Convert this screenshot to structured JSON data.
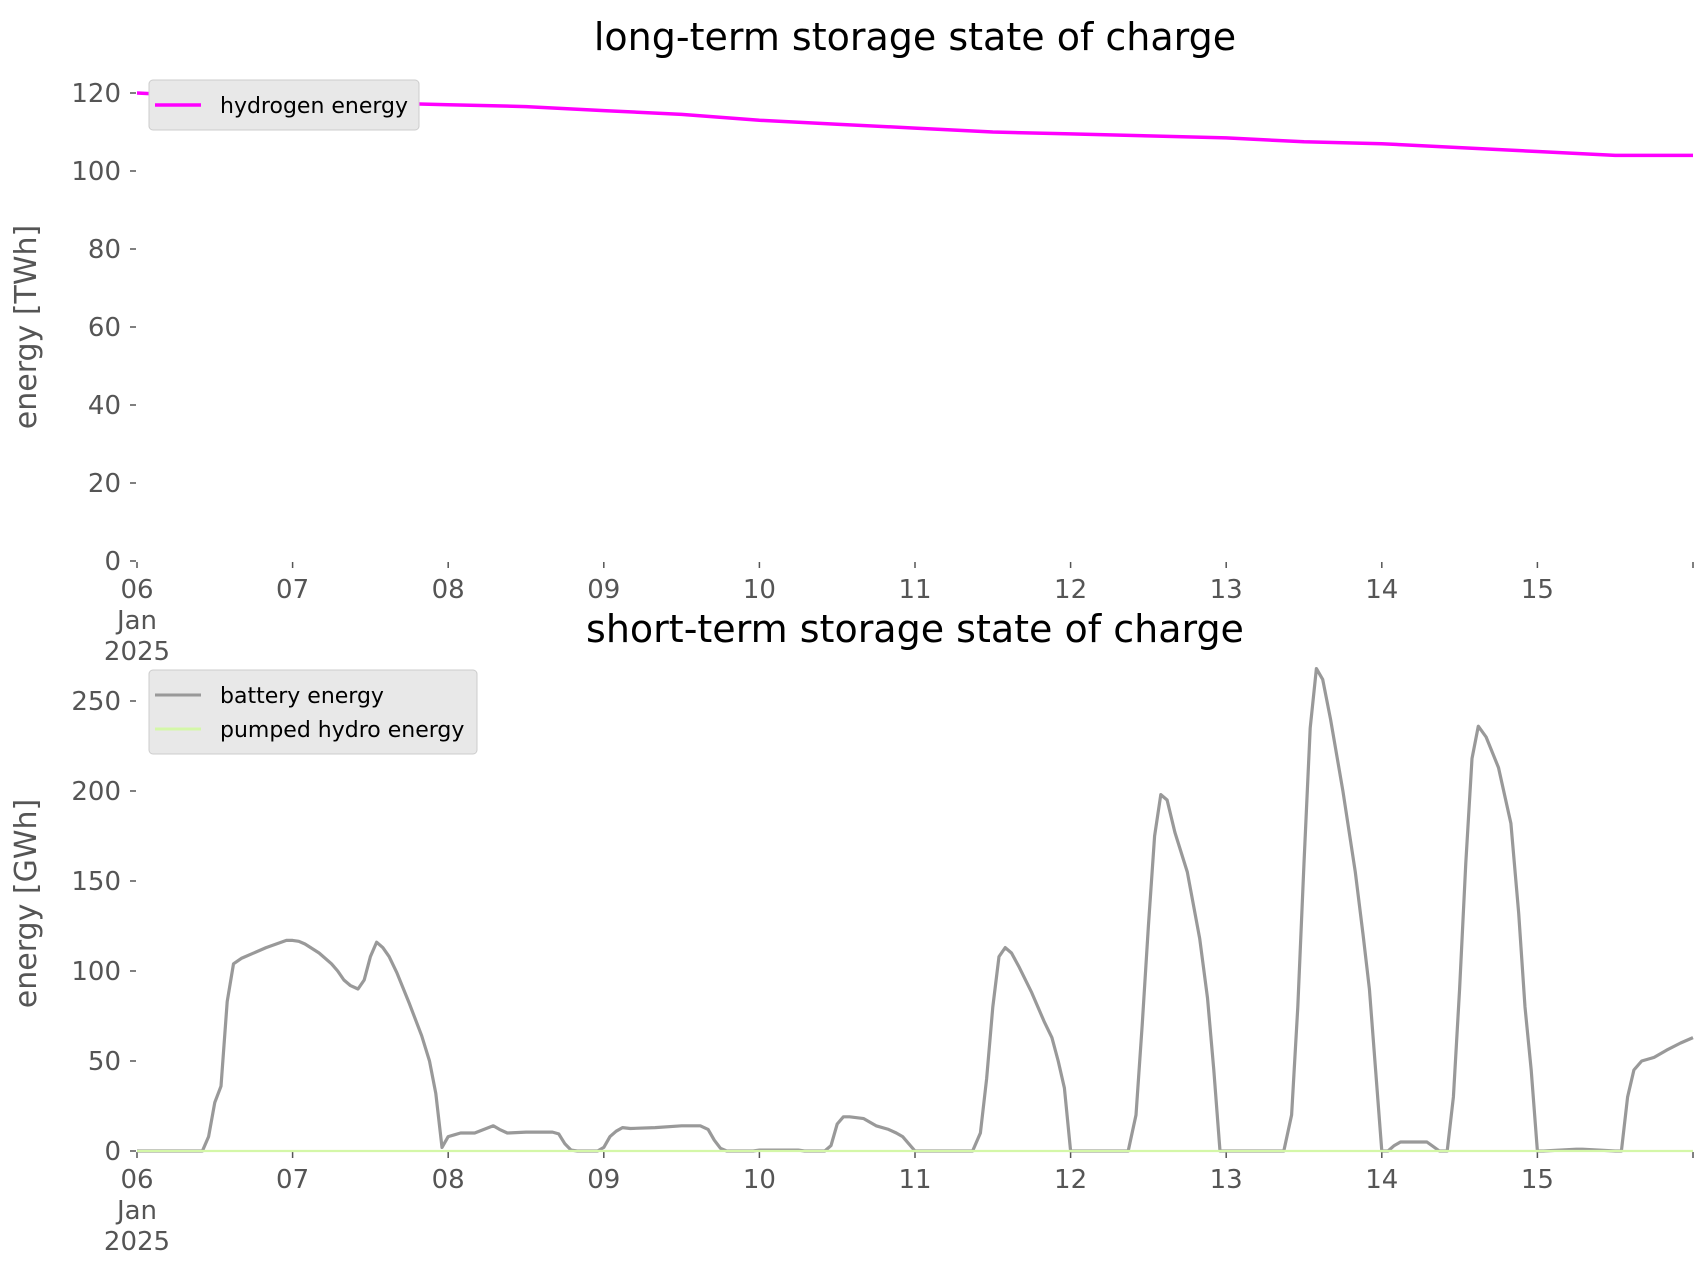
{
  "chart_data": [
    {
      "type": "line",
      "title": "long-term storage state of charge",
      "xlabel": "",
      "ylabel": "energy [TWh]",
      "ylim": [
        0,
        120
      ],
      "yticks": [
        0,
        20,
        40,
        60,
        80,
        100,
        120
      ],
      "xlim": [
        0,
        10
      ],
      "xtick_labels": [
        {
          "x": 0,
          "lines": [
            "06",
            "Jan",
            "2025"
          ]
        },
        {
          "x": 1,
          "lines": [
            "07"
          ]
        },
        {
          "x": 2,
          "lines": [
            "08"
          ]
        },
        {
          "x": 3,
          "lines": [
            "09"
          ]
        },
        {
          "x": 4,
          "lines": [
            "10"
          ]
        },
        {
          "x": 5,
          "lines": [
            "11"
          ]
        },
        {
          "x": 6,
          "lines": [
            "12"
          ]
        },
        {
          "x": 7,
          "lines": [
            "13"
          ]
        },
        {
          "x": 8,
          "lines": [
            "14"
          ]
        },
        {
          "x": 9,
          "lines": [
            "15"
          ]
        }
      ],
      "grid": false,
      "legend": "upper-left",
      "series": [
        {
          "name": "hydrogen energy",
          "color": "#ff00ff",
          "x": [
            0,
            0.5,
            1,
            1.5,
            2,
            2.5,
            3,
            3.5,
            4,
            4.5,
            5,
            5.5,
            6,
            6.5,
            7,
            7.5,
            8,
            8.5,
            9,
            9.5,
            10
          ],
          "y": [
            120,
            119,
            118.5,
            117.5,
            117,
            116.5,
            115.5,
            114.5,
            113,
            112,
            111,
            110,
            109.5,
            109,
            108.5,
            107.5,
            107,
            106,
            105,
            104,
            104
          ]
        }
      ]
    },
    {
      "type": "line",
      "title": "short-term storage state of charge",
      "xlabel": "",
      "ylabel": "energy [GWh]",
      "ylim": [
        0,
        275
      ],
      "yticks": [
        0,
        50,
        100,
        150,
        200,
        250
      ],
      "xlim": [
        0,
        10
      ],
      "xtick_labels": [
        {
          "x": 0,
          "lines": [
            "06",
            "Jan",
            "2025"
          ]
        },
        {
          "x": 1,
          "lines": [
            "07"
          ]
        },
        {
          "x": 2,
          "lines": [
            "08"
          ]
        },
        {
          "x": 3,
          "lines": [
            "09"
          ]
        },
        {
          "x": 4,
          "lines": [
            "10"
          ]
        },
        {
          "x": 5,
          "lines": [
            "11"
          ]
        },
        {
          "x": 6,
          "lines": [
            "12"
          ]
        },
        {
          "x": 7,
          "lines": [
            "13"
          ]
        },
        {
          "x": 8,
          "lines": [
            "14"
          ]
        },
        {
          "x": 9,
          "lines": [
            "15"
          ]
        }
      ],
      "grid": false,
      "legend": "upper-left",
      "series": [
        {
          "name": "battery energy",
          "color": "#999999",
          "x": [
            0,
            0.42,
            0.46,
            0.5,
            0.54,
            0.58,
            0.62,
            0.67,
            0.83,
            0.96,
            1.0,
            1.04,
            1.08,
            1.17,
            1.25,
            1.29,
            1.33,
            1.37,
            1.42,
            1.46,
            1.5,
            1.54,
            1.58,
            1.62,
            1.67,
            1.75,
            1.83,
            1.88,
            1.92,
            1.96,
            2.0,
            2.04,
            2.08,
            2.17,
            2.29,
            2.33,
            2.38,
            2.5,
            2.67,
            2.71,
            2.75,
            2.79,
            2.83,
            2.96,
            3.0,
            3.04,
            3.08,
            3.12,
            3.17,
            3.33,
            3.5,
            3.62,
            3.67,
            3.71,
            3.75,
            3.79,
            3.83,
            3.96,
            4.0,
            4.25,
            4.29,
            4.42,
            4.46,
            4.5,
            4.54,
            4.58,
            4.67,
            4.75,
            4.83,
            4.88,
            4.92,
            5.0,
            5.37,
            5.42,
            5.46,
            5.5,
            5.54,
            5.58,
            5.62,
            5.67,
            5.75,
            5.83,
            5.88,
            5.92,
            5.96,
            6.0,
            6.37,
            6.42,
            6.46,
            6.5,
            6.54,
            6.58,
            6.62,
            6.67,
            6.75,
            6.83,
            6.88,
            6.92,
            6.96,
            7.0,
            7.25,
            7.37,
            7.42,
            7.46,
            7.5,
            7.54,
            7.58,
            7.62,
            7.67,
            7.75,
            7.83,
            7.88,
            7.92,
            7.96,
            8.0,
            8.04,
            8.08,
            8.12,
            8.25,
            8.29,
            8.37,
            8.42,
            8.46,
            8.5,
            8.54,
            8.58,
            8.62,
            8.67,
            8.75,
            8.83,
            8.88,
            8.92,
            8.96,
            9.0,
            9.04,
            9.25,
            9.29,
            9.5,
            9.54,
            9.58,
            9.62,
            9.67,
            9.75,
            9.83,
            9.92,
            10.0
          ],
          "y": [
            0,
            0,
            8,
            27,
            36,
            83,
            104,
            107,
            113,
            117,
            117,
            116.5,
            115,
            110,
            104,
            100,
            95,
            92,
            90,
            95,
            108,
            116,
            113,
            108,
            99,
            82,
            64,
            50,
            32,
            2,
            8,
            9,
            10,
            10,
            14,
            12,
            10,
            10.5,
            10.5,
            9.5,
            4,
            0.5,
            0,
            0,
            2,
            8,
            11,
            13,
            12.5,
            13,
            14,
            14,
            12,
            6,
            1.5,
            0,
            0,
            0,
            0.5,
            0.5,
            0,
            0,
            3,
            15,
            19,
            19,
            18,
            14,
            12,
            10,
            8,
            0,
            0,
            10,
            40,
            80,
            108,
            113,
            110,
            102,
            88,
            72,
            63,
            50,
            35,
            0,
            0,
            20,
            70,
            125,
            175,
            198,
            195,
            177,
            155,
            118,
            85,
            45,
            0,
            0,
            0,
            0,
            20,
            80,
            160,
            235,
            268,
            262,
            240,
            200,
            155,
            120,
            90,
            45,
            0,
            0,
            3,
            5,
            5,
            5,
            0,
            0,
            30,
            90,
            160,
            218,
            236,
            230,
            213,
            182,
            132,
            80,
            45,
            0,
            0,
            1,
            1,
            0,
            0,
            30,
            45,
            50,
            52,
            56,
            60,
            63
          ]
        },
        {
          "name": "pumped hydro energy",
          "color": "#d4f7a8",
          "x": [
            0,
            10
          ],
          "y": [
            0,
            0
          ]
        }
      ]
    }
  ]
}
